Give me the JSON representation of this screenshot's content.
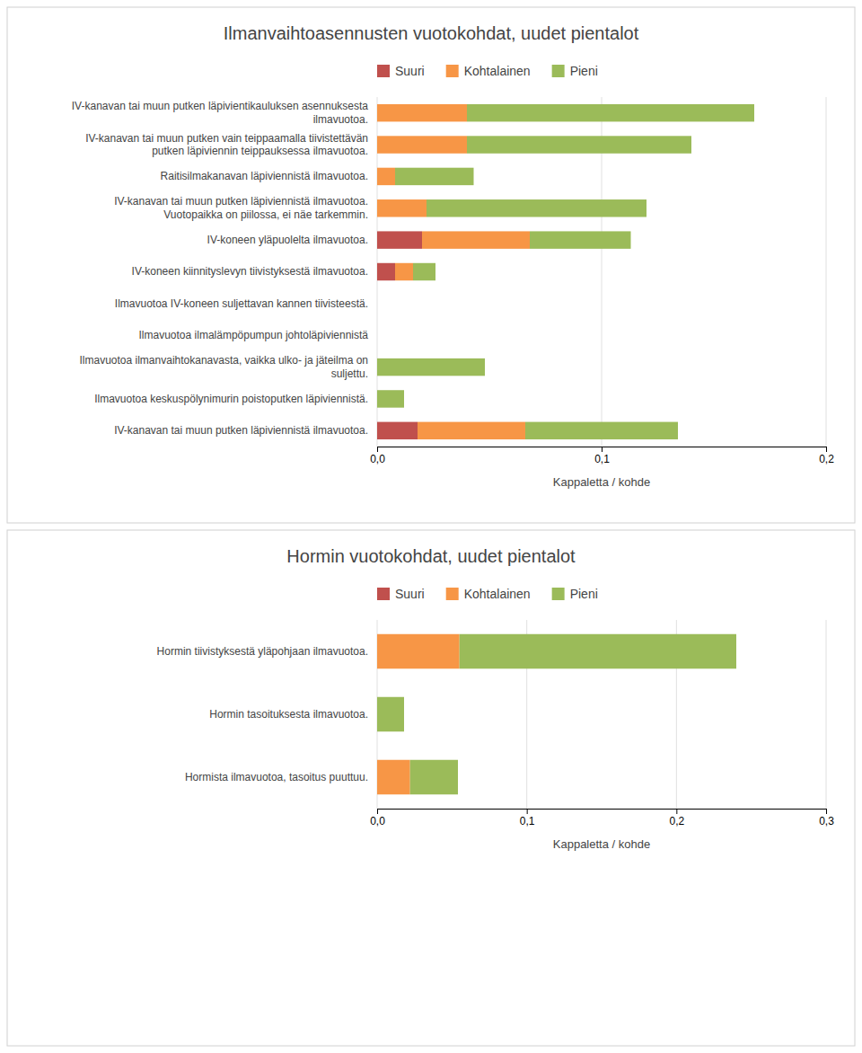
{
  "chart_data": [
    {
      "type": "bar",
      "orientation": "horizontal",
      "stacked": true,
      "grid": true,
      "legend": "top",
      "title": "Ilmanvaihtoasennusten vuotokohdat, uudet pientalot",
      "categories": [
        "IV-kanavan tai muun putken läpivientikauluksen asennuksesta\nilmavuotoa.",
        "IV-kanavan tai muun putken vain teippaamalla tiivistettävän\nputken läpiviennin teippauksessa ilmavuotoa.",
        "Raitisilmakanavan läpiviennistä ilmavuotoa.",
        "IV-kanavan tai muun putken läpiviennistä ilmavuotoa.\nVuotopaikka on piilossa, ei näe tarkemmin.",
        "IV-koneen yläpuolelta ilmavuotoa.",
        "IV-koneen kiinnityslevyn tiivistyksestä ilmavuotoa.",
        "Ilmavuotoa IV-koneen suljettavan kannen tiivisteestä.",
        "Ilmavuotoa ilmalämpöpumpun johtoläpiviennistä",
        "Ilmavuotoa ilmanvaihtokanavasta, vaikka ulko- ja jäteilma on\nsuljettu.",
        "Ilmavuotoa keskuspölynimurin poistoputken läpiviennistä.",
        "IV-kanavan tai muun putken läpiviennistä ilmavuotoa."
      ],
      "series": [
        {
          "name": "Suuri",
          "color": "#C0504D",
          "values": [
            0.0,
            0.0,
            0.0,
            0.0,
            0.02,
            0.008,
            0.0,
            0.0,
            0.0,
            0.0,
            0.018
          ]
        },
        {
          "name": "Kohtalainen",
          "color": "#F79646",
          "values": [
            0.04,
            0.04,
            0.008,
            0.022,
            0.048,
            0.008,
            0.0,
            0.0,
            0.0,
            0.0,
            0.048
          ]
        },
        {
          "name": "Pieni",
          "color": "#9BBB59",
          "values": [
            0.128,
            0.1,
            0.035,
            0.098,
            0.045,
            0.01,
            0.0,
            0.0,
            0.048,
            0.012,
            0.068
          ]
        }
      ],
      "xlim": [
        0.0,
        0.2
      ],
      "xticks": [
        {
          "value": 0.0,
          "label": "0,0"
        },
        {
          "value": 0.1,
          "label": "0,1"
        },
        {
          "value": 0.2,
          "label": "0,2"
        }
      ],
      "xlabel": "Kappaletta / kohde"
    },
    {
      "type": "bar",
      "orientation": "horizontal",
      "stacked": true,
      "grid": true,
      "legend": "top",
      "title": "Hormin vuotokohdat, uudet pientalot",
      "categories": [
        "Hormin tiivistyksestä yläpohjaan ilmavuotoa.",
        "Hormin tasoituksesta ilmavuotoa.",
        "Hormista ilmavuotoa, tasoitus puuttuu."
      ],
      "series": [
        {
          "name": "Suuri",
          "color": "#C0504D",
          "values": [
            0.0,
            0.0,
            0.0
          ]
        },
        {
          "name": "Kohtalainen",
          "color": "#F79646",
          "values": [
            0.055,
            0.0,
            0.022
          ]
        },
        {
          "name": "Pieni",
          "color": "#9BBB59",
          "values": [
            0.185,
            0.018,
            0.032
          ]
        }
      ],
      "xlim": [
        0.0,
        0.3
      ],
      "xticks": [
        {
          "value": 0.0,
          "label": "0,0"
        },
        {
          "value": 0.1,
          "label": "0,1"
        },
        {
          "value": 0.2,
          "label": "0,2"
        },
        {
          "value": 0.3,
          "label": "0,3"
        }
      ],
      "xlabel": "Kappaletta / kohde"
    }
  ]
}
